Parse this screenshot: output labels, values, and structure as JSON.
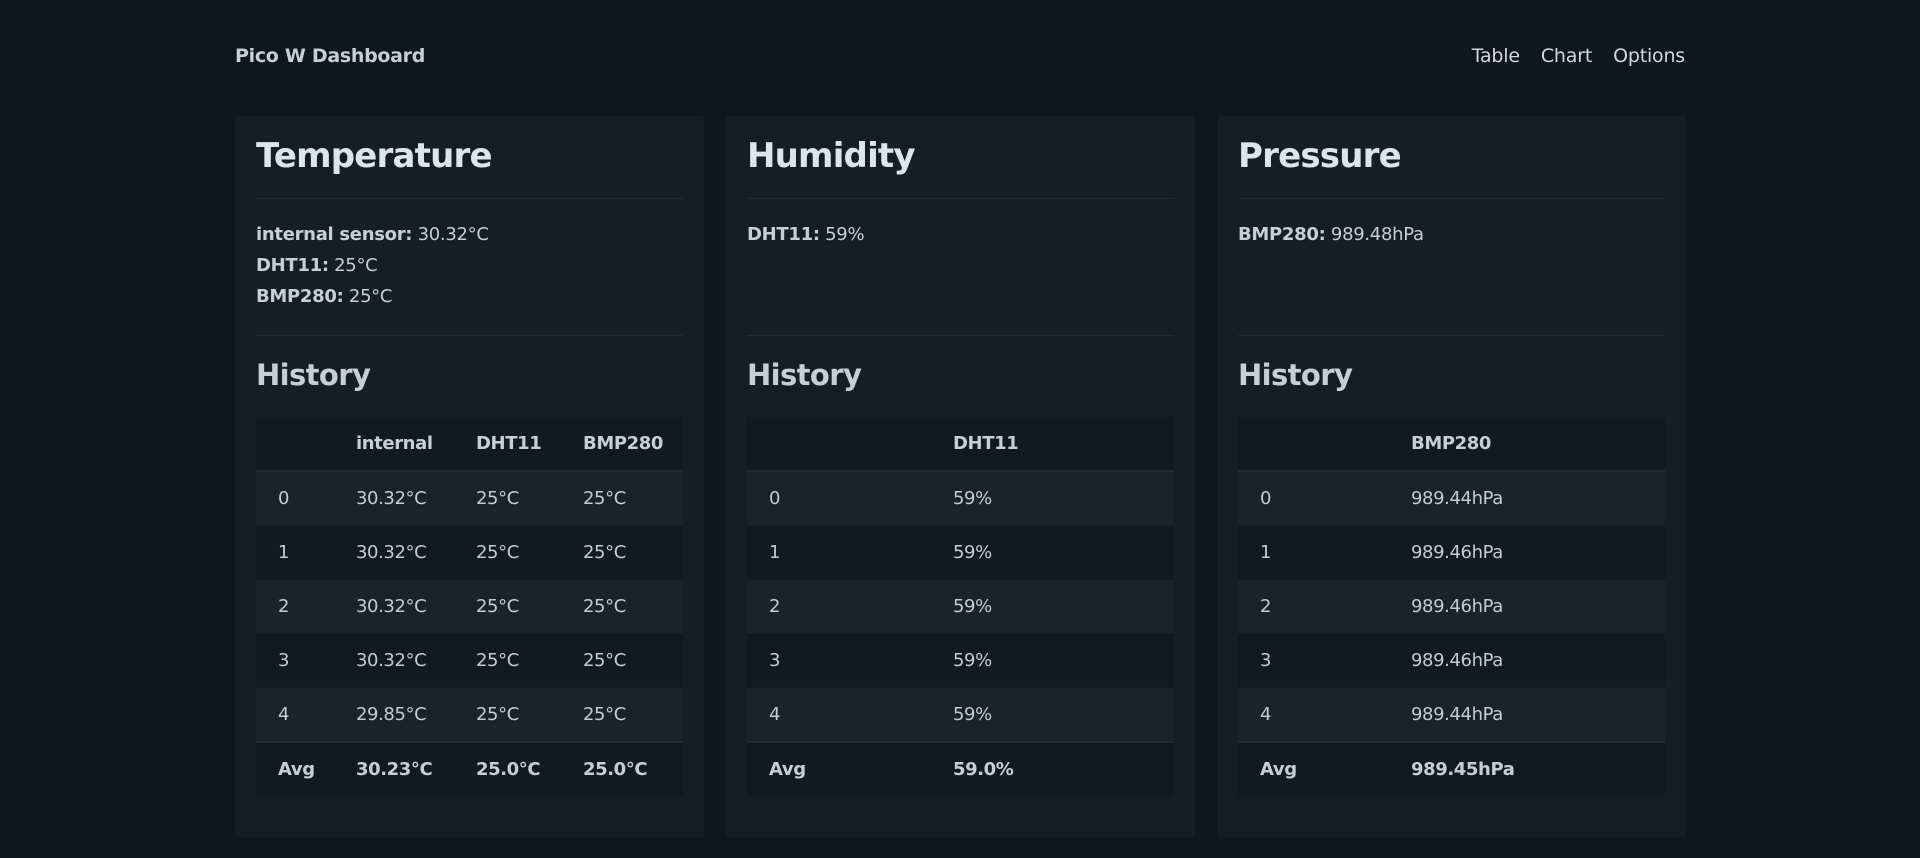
{
  "app": {
    "title": "Pico W Dashboard",
    "nav": [
      "Table",
      "Chart",
      "Options"
    ]
  },
  "cards": [
    {
      "title": "Temperature",
      "readings": [
        {
          "label": "internal sensor:",
          "value": "30.32°C"
        },
        {
          "label": "DHT11:",
          "value": "25°C"
        },
        {
          "label": "BMP280:",
          "value": "25°C"
        }
      ],
      "history_title": "History",
      "columns": [
        "",
        "internal",
        "DHT11",
        "BMP280"
      ],
      "rows": [
        [
          "0",
          "30.32°C",
          "25°C",
          "25°C"
        ],
        [
          "1",
          "30.32°C",
          "25°C",
          "25°C"
        ],
        [
          "2",
          "30.32°C",
          "25°C",
          "25°C"
        ],
        [
          "3",
          "30.32°C",
          "25°C",
          "25°C"
        ],
        [
          "4",
          "29.85°C",
          "25°C",
          "25°C"
        ]
      ],
      "footer": [
        "Avg",
        "30.23°C",
        "25.0°C",
        "25.0°C"
      ]
    },
    {
      "title": "Humidity",
      "readings": [
        {
          "label": "DHT11:",
          "value": "59%"
        }
      ],
      "history_title": "History",
      "columns": [
        "",
        "DHT11"
      ],
      "rows": [
        [
          "0",
          "59%"
        ],
        [
          "1",
          "59%"
        ],
        [
          "2",
          "59%"
        ],
        [
          "3",
          "59%"
        ],
        [
          "4",
          "59%"
        ]
      ],
      "footer": [
        "Avg",
        "59.0%"
      ]
    },
    {
      "title": "Pressure",
      "readings": [
        {
          "label": "BMP280:",
          "value": "989.48hPa"
        }
      ],
      "history_title": "History",
      "columns": [
        "",
        "BMP280"
      ],
      "rows": [
        [
          "0",
          "989.44hPa"
        ],
        [
          "1",
          "989.46hPa"
        ],
        [
          "2",
          "989.46hPa"
        ],
        [
          "3",
          "989.46hPa"
        ],
        [
          "4",
          "989.44hPa"
        ]
      ],
      "footer": [
        "Avg",
        "989.45hPa"
      ]
    }
  ]
}
